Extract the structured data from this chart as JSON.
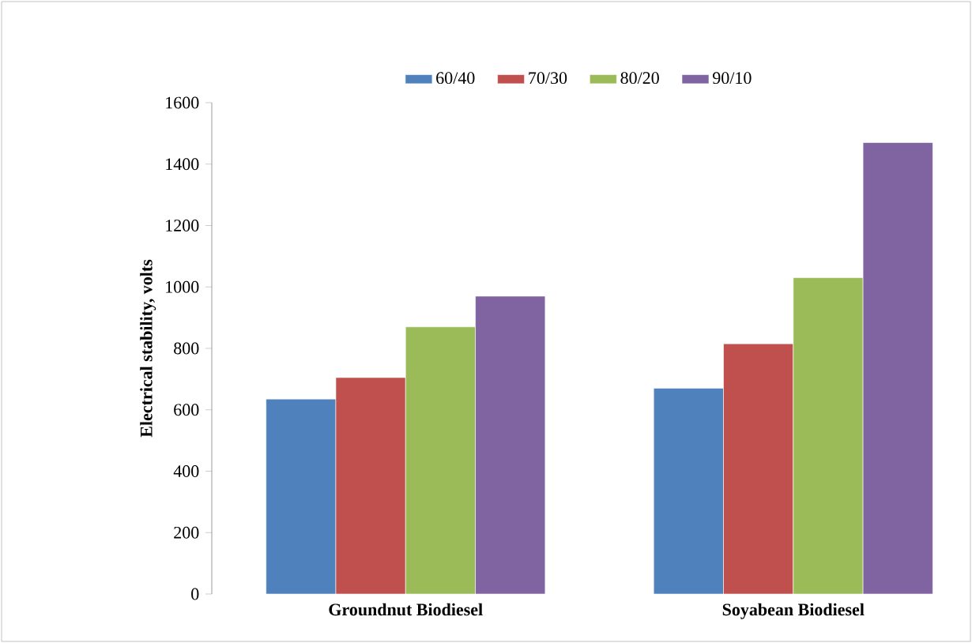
{
  "chart_data": {
    "type": "bar",
    "ylabel": "Electrical  stability, volts",
    "categories": [
      "Groundnut Biodiesel",
      "Soyabean Biodiesel"
    ],
    "series": [
      {
        "name": "60/40",
        "color": "#4f81bd",
        "values": [
          635,
          670
        ]
      },
      {
        "name": "70/30",
        "color": "#c0504d",
        "values": [
          705,
          815
        ]
      },
      {
        "name": "80/20",
        "color": "#9bbb59",
        "values": [
          870,
          1030
        ]
      },
      {
        "name": "90/10",
        "color": "#8064a2",
        "values": [
          970,
          1470
        ]
      }
    ],
    "ylim": [
      0,
      1600
    ],
    "yticks": [
      0,
      200,
      400,
      600,
      800,
      1000,
      1200,
      1400,
      1600
    ],
    "grid": false,
    "legend": "top"
  }
}
